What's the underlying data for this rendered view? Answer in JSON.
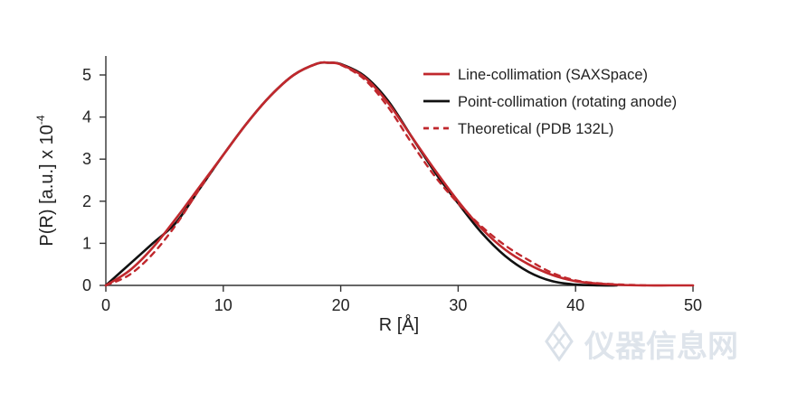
{
  "chart_data": {
    "type": "line",
    "title": "",
    "xlabel": "R [Å]",
    "ylabel": "P(R) [a.u.] x 10",
    "ylabel_exponent": "-4",
    "xlim": [
      0,
      50
    ],
    "ylim": [
      0,
      5.5
    ],
    "xticks": [
      0,
      10,
      20,
      30,
      40,
      50
    ],
    "yticks": [
      0,
      1,
      2,
      3,
      4,
      5
    ],
    "grid": false,
    "legend_position": "top-right",
    "series": [
      {
        "name": "Line-collimation (SAXSpace)",
        "color": "#c0282d",
        "style": "solid",
        "x": [
          0,
          2,
          4,
          6,
          8,
          10,
          12,
          14,
          16,
          18,
          19,
          20,
          22,
          24,
          26,
          28,
          30,
          32,
          34,
          36,
          38,
          40,
          42,
          44,
          46,
          48,
          50
        ],
        "y": [
          0,
          0.35,
          0.9,
          1.6,
          2.35,
          3.1,
          3.85,
          4.5,
          5.0,
          5.27,
          5.29,
          5.25,
          4.95,
          4.35,
          3.55,
          2.75,
          2.0,
          1.35,
          0.85,
          0.5,
          0.25,
          0.1,
          0.04,
          0.01,
          0,
          0,
          0
        ]
      },
      {
        "name": "Point-collimation (rotating anode)",
        "color": "#111111",
        "style": "solid",
        "x": [
          0,
          2,
          4,
          6,
          8,
          10,
          12,
          14,
          16,
          18,
          19,
          20,
          22,
          24,
          26,
          28,
          30,
          32,
          34,
          36,
          38,
          40,
          42,
          43.5
        ],
        "y": [
          0,
          0.5,
          1.0,
          1.5,
          2.3,
          3.1,
          3.85,
          4.5,
          5.0,
          5.27,
          5.29,
          5.26,
          4.98,
          4.4,
          3.55,
          2.7,
          1.95,
          1.25,
          0.7,
          0.32,
          0.1,
          0.02,
          0,
          0
        ]
      },
      {
        "name": "Theoretical (PDB 132L)",
        "color": "#c0282d",
        "style": "dashed",
        "x": [
          0,
          2,
          4,
          6,
          8,
          10,
          12,
          14,
          16,
          18,
          19,
          20,
          22,
          24,
          26,
          28,
          30,
          32,
          34,
          36,
          38,
          40,
          42,
          44,
          46
        ],
        "y": [
          0,
          0.25,
          0.75,
          1.45,
          2.3,
          3.1,
          3.85,
          4.5,
          5.0,
          5.27,
          5.29,
          5.24,
          4.9,
          4.25,
          3.4,
          2.6,
          1.95,
          1.4,
          0.95,
          0.6,
          0.3,
          0.12,
          0.05,
          0.02,
          0
        ]
      }
    ]
  },
  "watermark": {
    "text": "仪器信息网",
    "logo": "instrument-logo"
  }
}
